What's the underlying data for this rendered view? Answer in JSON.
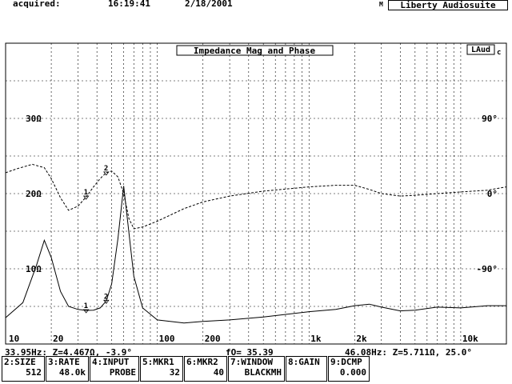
{
  "header": {
    "acquired_label": "acquired:",
    "time": "16:19:41",
    "date": "2/18/2001",
    "brand_prefix": "M",
    "brand": "Liberty Audiosuite"
  },
  "plot": {
    "title": "Impedance Mag and Phase",
    "logo": "LAud",
    "logo_suffix": "c",
    "left_ticks": [
      "30Ω",
      "20Ω",
      "10Ω"
    ],
    "right_ticks": [
      "90°",
      "0°",
      "-90°"
    ],
    "x_ticks": [
      "10",
      "20",
      "100",
      "200",
      "1k",
      "2k",
      "10k"
    ],
    "markers": {
      "m1": "1",
      "m2": "2"
    }
  },
  "chart_data": {
    "type": "line",
    "title": "Impedance Mag and Phase",
    "xscale": "log",
    "xlim": [
      10,
      20000
    ],
    "ylim_left": [
      0,
      40
    ],
    "ylim_right": [
      -180,
      180
    ],
    "series": [
      {
        "axis": "left",
        "x": [
          10,
          13,
          16,
          18,
          20,
          23,
          26,
          30,
          33.95,
          38,
          42,
          46.08,
          50,
          55,
          60,
          70,
          80,
          100,
          150,
          200,
          300,
          500,
          1000,
          1500,
          2000,
          2500,
          3000,
          4000,
          5000,
          7000,
          10000,
          15000,
          20000
        ],
        "values": [
          3.5,
          5.5,
          10.5,
          13.8,
          11.5,
          7.0,
          5.0,
          4.6,
          4.467,
          4.5,
          4.8,
          5.711,
          8.0,
          14.0,
          21.0,
          9.0,
          4.8,
          3.2,
          2.8,
          3.0,
          3.2,
          3.6,
          4.3,
          4.6,
          5.1,
          5.3,
          4.9,
          4.4,
          4.5,
          4.9,
          4.8,
          5.1,
          5.1
        ]
      },
      {
        "axis": "right",
        "x": [
          10,
          12,
          15,
          18,
          20,
          23,
          26,
          30,
          33.95,
          38,
          42,
          46.08,
          50,
          55,
          60,
          65,
          70,
          80,
          100,
          150,
          200,
          300,
          500,
          1000,
          1500,
          2000,
          2500,
          3000,
          4000,
          5000,
          7000,
          10000,
          15000,
          20000
        ],
        "values": [
          25,
          30,
          35,
          31,
          18,
          -5,
          -20,
          -15,
          -3.9,
          8,
          18,
          25,
          27,
          20,
          0,
          -30,
          -42,
          -40,
          -33,
          -18,
          -10,
          -3,
          3,
          8,
          10,
          10,
          5,
          0,
          -3,
          -2,
          0,
          2,
          4,
          8
        ]
      }
    ]
  },
  "status": {
    "left": "33.95Hz: Z=4.467Ω, -3.9°",
    "center": "fO= 35.39",
    "right": "46.08Hz: Z=5.711Ω, 25.0°"
  },
  "fkeys": [
    {
      "label": "2:SIZE",
      "value": "512"
    },
    {
      "label": "3:RATE",
      "value": "48.0k"
    },
    {
      "label": "4:INPUT",
      "value": "PROBE"
    },
    {
      "label": "5:MKR1",
      "value": "32"
    },
    {
      "label": "6:MKR2",
      "value": "40"
    },
    {
      "label": "7:WINDOW",
      "value": "BLACKMH"
    },
    {
      "label": "8:GAIN",
      "value": ""
    },
    {
      "label": "9:DCMP",
      "value": "0.000"
    }
  ]
}
